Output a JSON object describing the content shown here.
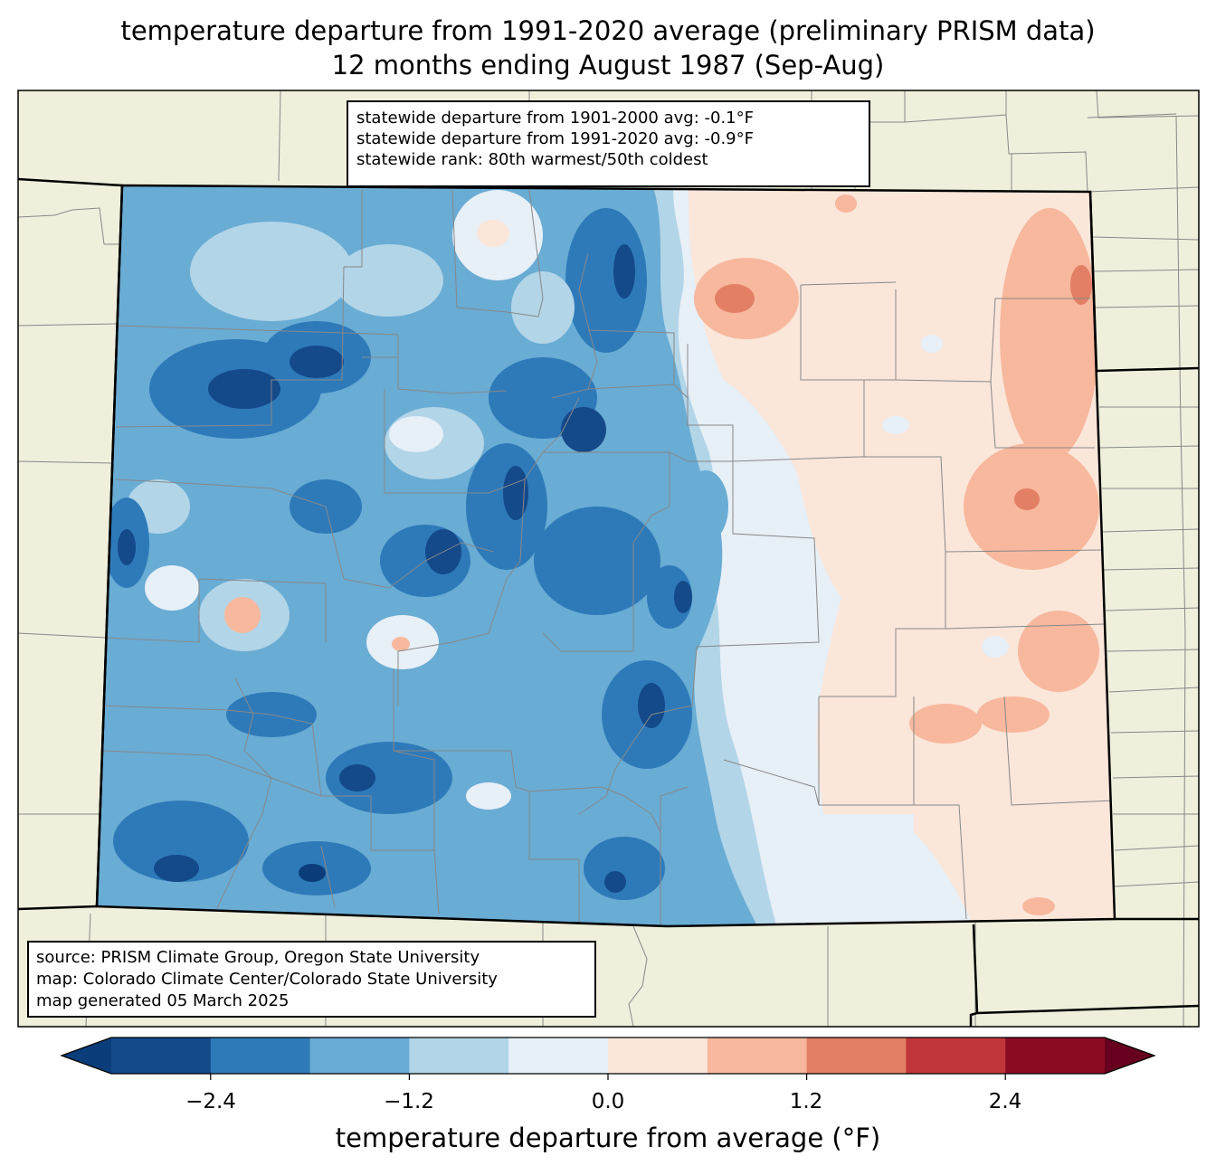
{
  "title": {
    "line1": "temperature departure from 1991-2020 average (preliminary PRISM data)",
    "line2": "12 months ending August 1987 (Sep-Aug)"
  },
  "stats_box": {
    "line1": "statewide departure from 1901-2000 avg: -0.1°F",
    "line2": "statewide departure from 1991-2020 avg: -0.9°F",
    "line3": "statewide rank: 80th warmest/50th coldest"
  },
  "credits_box": {
    "line1": "source: PRISM Climate Group, Oregon State University",
    "line2": "map: Colorado Climate Center/Colorado State University",
    "line3": "map generated 05 March 2025"
  },
  "colorbar": {
    "label": "temperature departure from average (°F)",
    "ticks": [
      "−2.4",
      "−1.2",
      "0.0",
      "1.2",
      "2.4"
    ],
    "min": -3.0,
    "max": 3.0,
    "step": 0.6,
    "colors": [
      "#0b3d7a",
      "#14498a",
      "#2e7ab9",
      "#69acd4",
      "#b2d5e8",
      "#e7eff7",
      "#fbe6da",
      "#f7b89d",
      "#e27f65",
      "#c0363a",
      "#8b0b24",
      "#67001f"
    ]
  },
  "map_colors": {
    "land": "#efefdc",
    "county_line": "#888888",
    "state_line": "#000000"
  }
}
